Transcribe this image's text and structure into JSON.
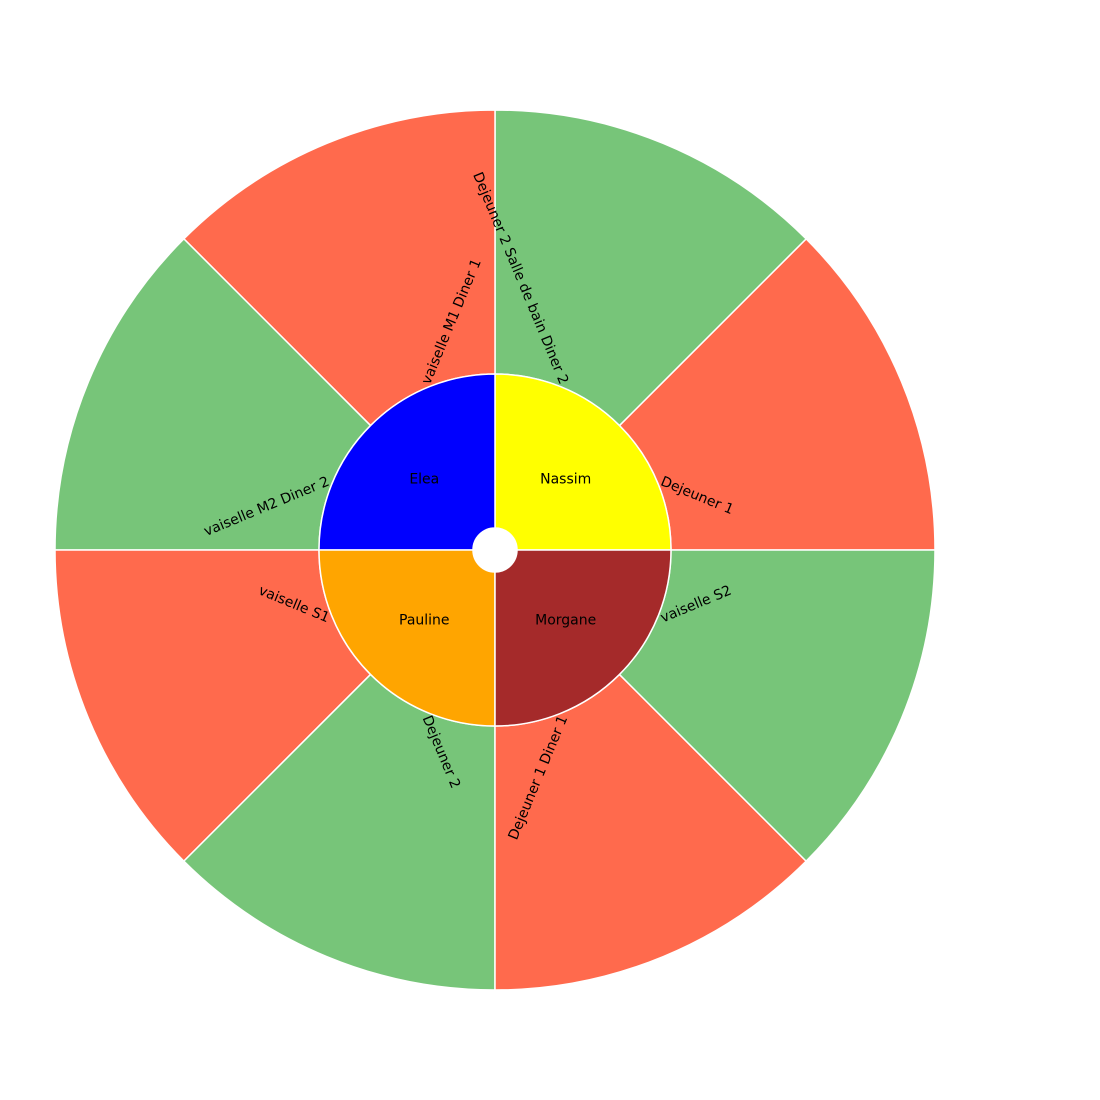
{
  "chart_data": {
    "type": "sunburst",
    "title": "",
    "inner": [
      {
        "name": "Nassim",
        "value": 1,
        "color": "#ffff00"
      },
      {
        "name": "Elea",
        "value": 1,
        "color": "#0000ff"
      },
      {
        "name": "Pauline",
        "value": 1,
        "color": "#ffa500"
      },
      {
        "name": "Morgane",
        "value": 1,
        "color": "#a52a2a"
      }
    ],
    "outer": [
      {
        "name": "Dejeuner 1",
        "parent": "Nassim",
        "value": 1,
        "color": "#ff6a4d"
      },
      {
        "name": "Dejeuner 2 Salle de bain Diner 2",
        "parent": "Nassim",
        "value": 1,
        "color": "#77c579"
      },
      {
        "name": "vaiselle M1 Diner 1",
        "parent": "Elea",
        "value": 1,
        "color": "#ff6a4d"
      },
      {
        "name": "vaiselle M2 Diner 2",
        "parent": "Elea",
        "value": 1,
        "color": "#77c579"
      },
      {
        "name": "vaiselle S1",
        "parent": "Pauline",
        "value": 1,
        "color": "#ff6a4d"
      },
      {
        "name": "Dejeuner 2",
        "parent": "Pauline",
        "value": 1,
        "color": "#77c579"
      },
      {
        "name": "Dejeuner 1 Diner 1",
        "parent": "Morgane",
        "value": 1,
        "color": "#ff6a4d"
      },
      {
        "name": "vaiselle S2",
        "parent": "Morgane",
        "value": 1,
        "color": "#77c579"
      }
    ]
  }
}
